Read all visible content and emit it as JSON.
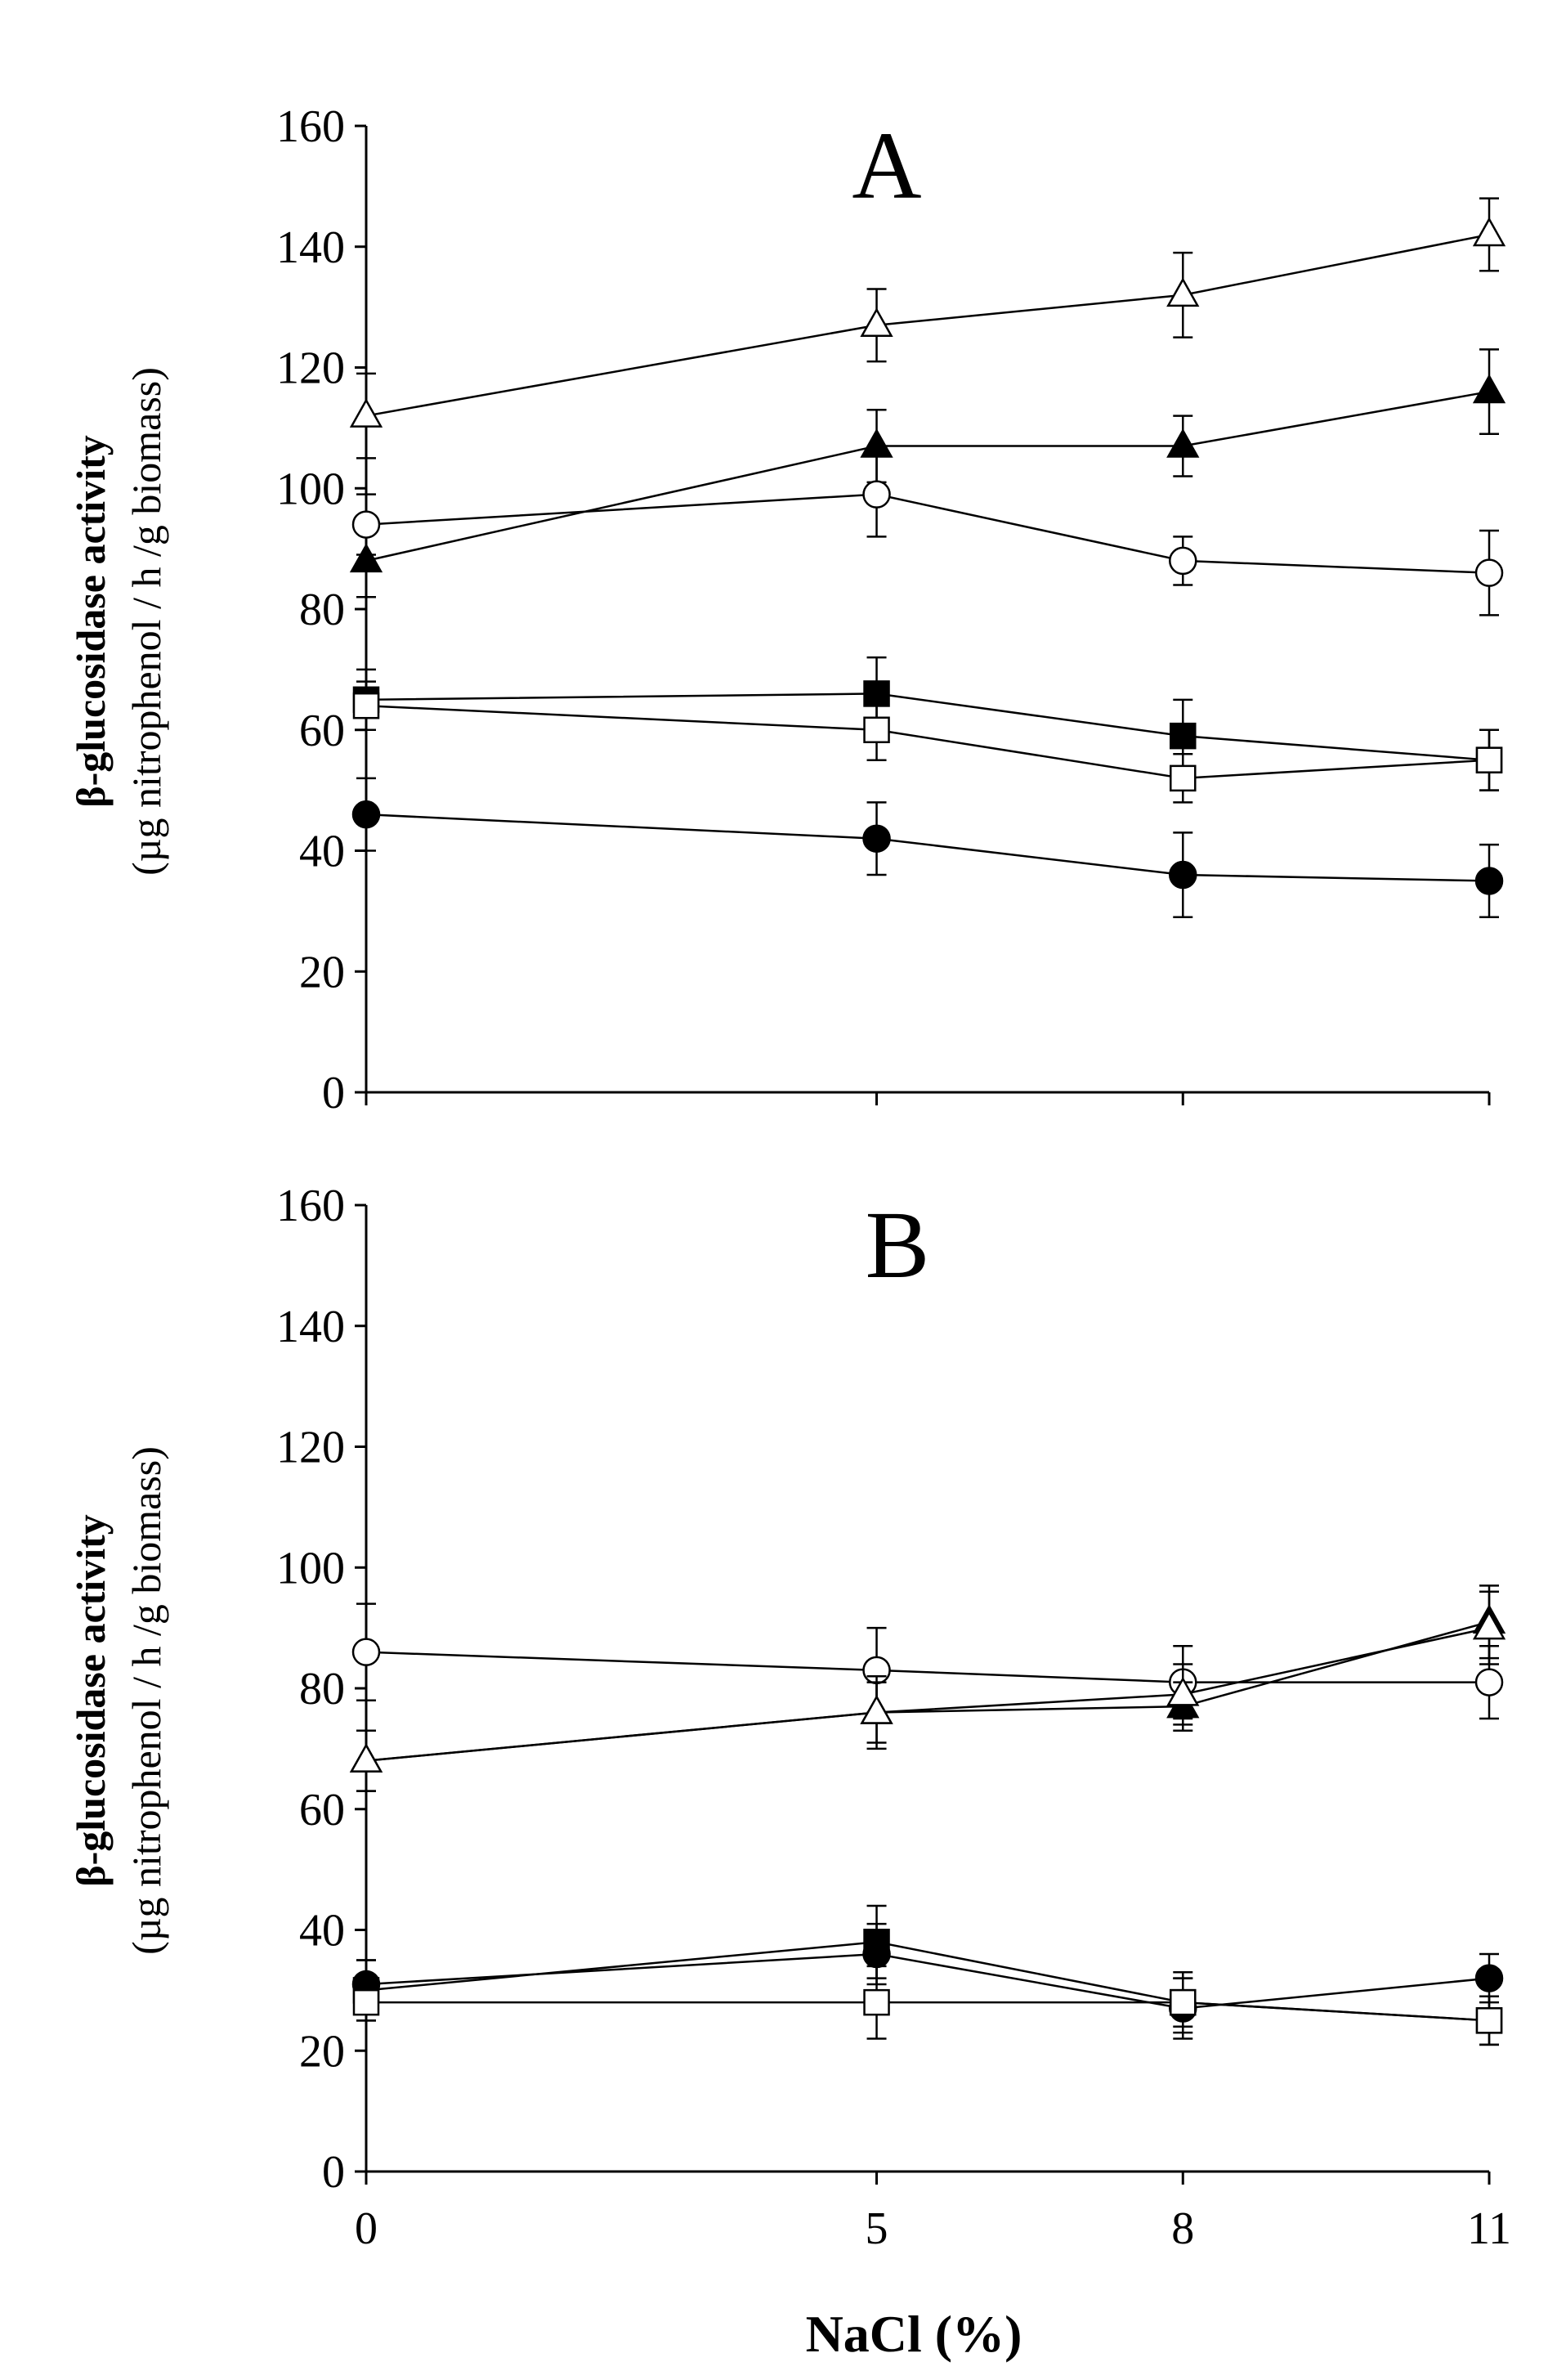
{
  "chart_data": [
    {
      "type": "line",
      "panel_label": "A",
      "ylabel": "β-glucosidase activity",
      "ylabel_units": "(µg nitrophenol / h /g biomass)",
      "xlabel": "",
      "x": [
        0,
        5,
        8,
        11
      ],
      "x_tick_labels": [
        "0",
        "5",
        "8",
        "11"
      ],
      "ylim": [
        0,
        160
      ],
      "y_ticks": [
        0,
        20,
        40,
        60,
        80,
        100,
        120,
        140,
        160
      ],
      "series": [
        {
          "name": "open triangle",
          "marker": "triangle",
          "filled": false,
          "values": [
            112,
            127,
            132,
            142
          ],
          "errors": [
            7,
            6,
            7,
            6
          ]
        },
        {
          "name": "filled triangle",
          "marker": "triangle",
          "filled": true,
          "values": [
            88,
            107,
            107,
            116
          ],
          "errors": [
            6,
            6,
            5,
            7
          ]
        },
        {
          "name": "open circle",
          "marker": "circle",
          "filled": false,
          "values": [
            94,
            99,
            88,
            86
          ],
          "errors": [
            5,
            7,
            4,
            7
          ]
        },
        {
          "name": "filled square",
          "marker": "square",
          "filled": true,
          "values": [
            65,
            66,
            59,
            55
          ],
          "errors": [
            5,
            6,
            6,
            5
          ]
        },
        {
          "name": "open square",
          "marker": "square",
          "filled": false,
          "values": [
            64,
            60,
            52,
            55
          ],
          "errors": [
            4,
            5,
            4,
            5
          ]
        },
        {
          "name": "filled circle",
          "marker": "circle",
          "filled": true,
          "values": [
            46,
            42,
            36,
            35
          ],
          "errors": [
            6,
            6,
            7,
            6
          ]
        }
      ]
    },
    {
      "type": "line",
      "panel_label": "B",
      "ylabel": "β-glucosidase activity",
      "ylabel_units": "(µg nitrophenol / h /g biomass)",
      "xlabel": "NaCl  (%)",
      "x": [
        0,
        5,
        8,
        11
      ],
      "x_tick_labels": [
        "0",
        "5",
        "8",
        "11"
      ],
      "ylim": [
        0,
        160
      ],
      "y_ticks": [
        0,
        20,
        40,
        60,
        80,
        100,
        120,
        140,
        160
      ],
      "series": [
        {
          "name": "open circle",
          "marker": "circle",
          "filled": false,
          "values": [
            86,
            83,
            81,
            81
          ],
          "errors": [
            8,
            7,
            6,
            6
          ]
        },
        {
          "name": "filled triangle",
          "marker": "triangle",
          "filled": true,
          "values": [
            68,
            76,
            77,
            91
          ],
          "errors": [
            5,
            6,
            4,
            6
          ]
        },
        {
          "name": "open triangle",
          "marker": "triangle",
          "filled": false,
          "values": [
            68,
            76,
            79,
            90
          ],
          "errors": [
            5,
            5,
            5,
            6
          ]
        },
        {
          "name": "filled square",
          "marker": "square",
          "filled": true,
          "values": [
            30,
            38,
            28,
            25
          ],
          "errors": [
            5,
            6,
            5,
            4
          ]
        },
        {
          "name": "filled circle",
          "marker": "circle",
          "filled": true,
          "values": [
            31,
            36,
            27,
            32
          ],
          "errors": [
            4,
            5,
            5,
            4
          ]
        },
        {
          "name": "open square",
          "marker": "square",
          "filled": false,
          "values": [
            28,
            28,
            28,
            25
          ],
          "errors": [
            3,
            6,
            4,
            4
          ]
        }
      ]
    }
  ]
}
